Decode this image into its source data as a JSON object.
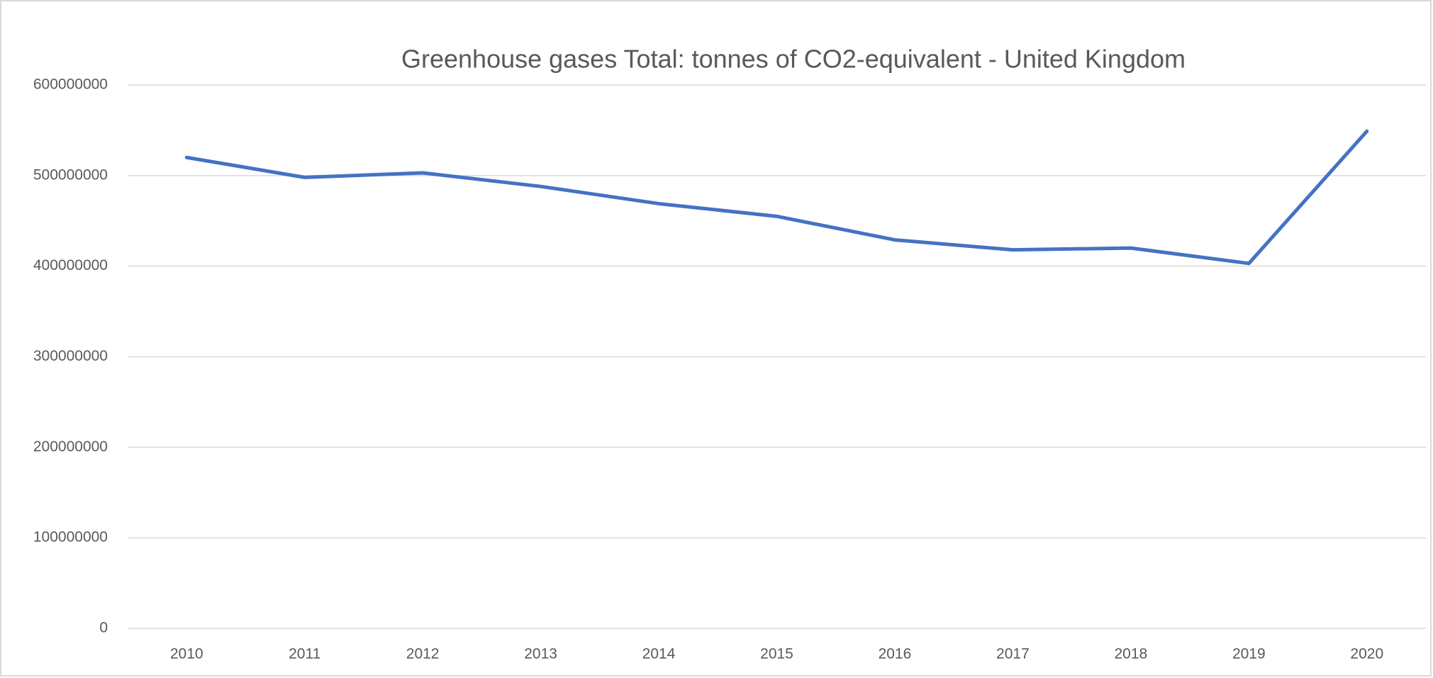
{
  "chart_data": {
    "type": "line",
    "title": "Greenhouse gases Total: tonnes of CO2-equivalent - United Kingdom",
    "categories": [
      "2010",
      "2011",
      "2012",
      "2013",
      "2014",
      "2015",
      "2016",
      "2017",
      "2018",
      "2019",
      "2020"
    ],
    "series": [
      {
        "name": "Greenhouse gases Total",
        "color": "#4472c4",
        "values": [
          520000000,
          498000000,
          503000000,
          488000000,
          469000000,
          455000000,
          429000000,
          418000000,
          420000000,
          403000000,
          549000000
        ]
      }
    ],
    "ylim": [
      0,
      600000000
    ],
    "yticks": [
      0,
      100000000,
      200000000,
      300000000,
      400000000,
      500000000,
      600000000
    ],
    "grid": true
  }
}
